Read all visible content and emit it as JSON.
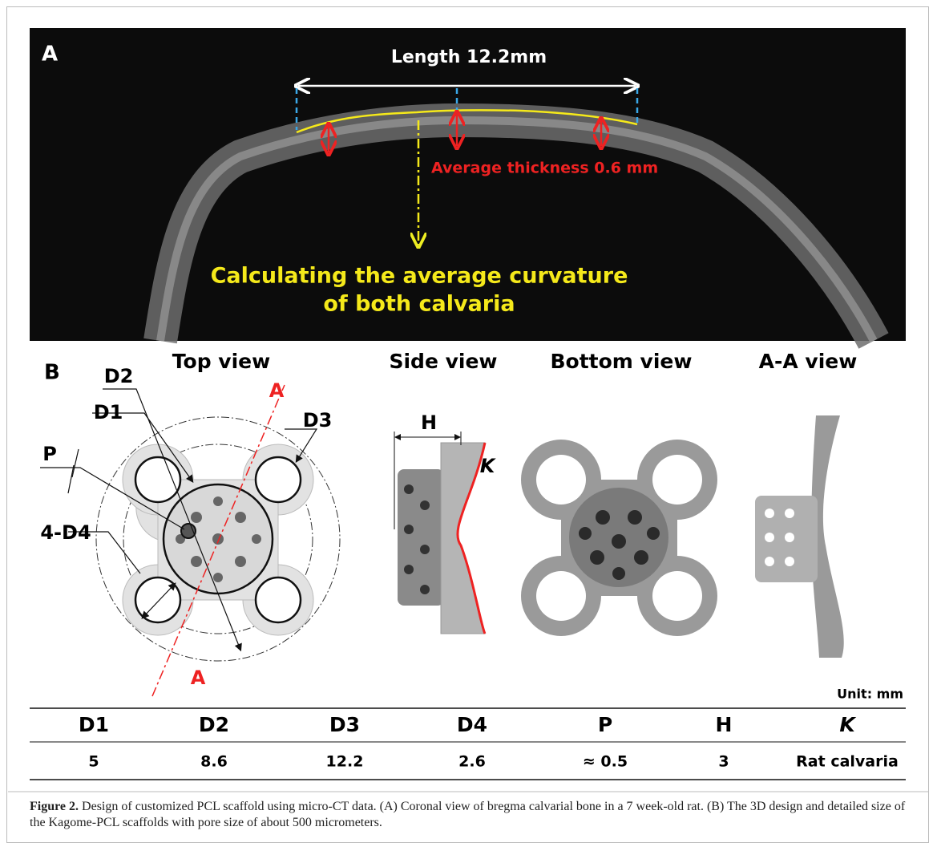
{
  "panel_a": {
    "label": "A",
    "length": "Length 12.2mm",
    "thickness": "Average thickness 0.6 mm",
    "curvature": [
      "Calculating the average curvature",
      "of both calvaria"
    ]
  },
  "panel_b": {
    "label": "B",
    "views": [
      "Top view",
      "Side view",
      "Bottom view",
      "A-A view"
    ],
    "top_labels": [
      "D2",
      "D1",
      "D3",
      "P",
      "4-D4"
    ],
    "section_marks": [
      "A",
      "A"
    ],
    "side_labels": [
      "H",
      "K"
    ],
    "unit": "Unit: mm"
  },
  "table": {
    "header": [
      "D1",
      "D2",
      "D3",
      "D4",
      "P",
      "H",
      "K"
    ],
    "rows": [
      [
        "5",
        "8.6",
        "12.2",
        "2.6",
        "≈ 0.5",
        "3",
        "Rat calvaria"
      ]
    ]
  },
  "caption": {
    "label": "Figure 2.",
    "text": "Design of customized PCL scaffold using micro-CT data. (A) Coronal view of bregma calvarial bone in a 7 week-old rat. (B) The 3D design and detailed size of the Kagome-PCL scaffolds with pore size of about 500 micrometers."
  }
}
